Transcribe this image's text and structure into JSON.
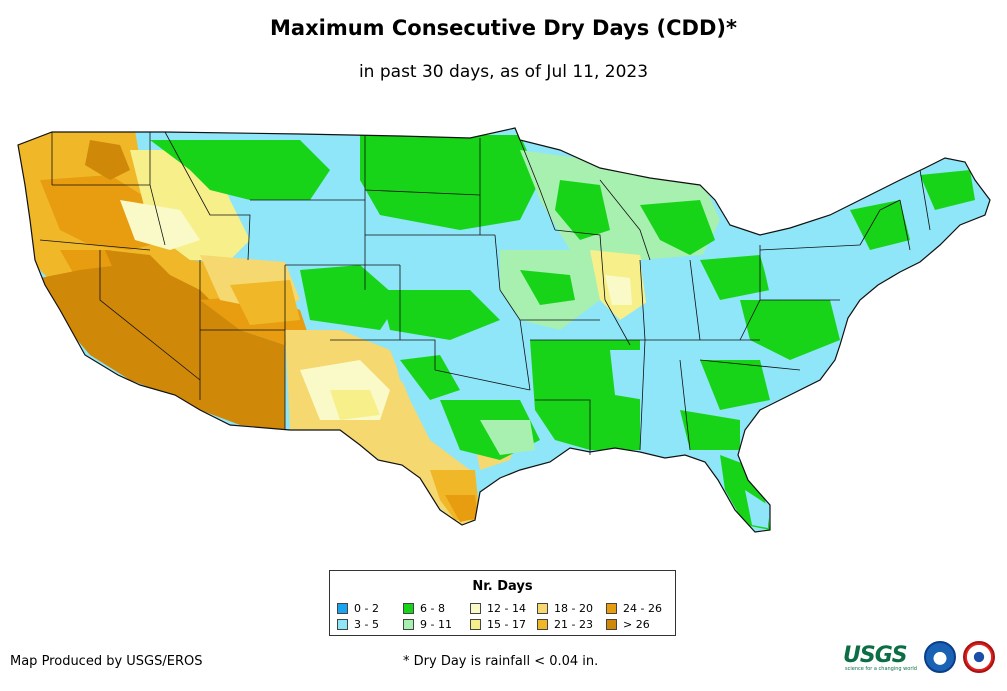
{
  "title": "Maximum Consecutive Dry Days (CDD)*",
  "subtitle": "in past 30 days, as of Jul 11, 2023",
  "legend": {
    "title": "Nr. Days",
    "items": [
      {
        "label": "0 - 2",
        "color": "#1aa3f0"
      },
      {
        "label": "3 - 5",
        "color": "#8ee6f8"
      },
      {
        "label": "6 - 8",
        "color": "#18d418"
      },
      {
        "label": "9 - 11",
        "color": "#a8f0b0"
      },
      {
        "label": "12 - 14",
        "color": "#fafac8"
      },
      {
        "label": "15 - 17",
        "color": "#f7f08a"
      },
      {
        "label": "18 - 20",
        "color": "#f5d870"
      },
      {
        "label": "21 - 23",
        "color": "#f0b828"
      },
      {
        "label": "24 - 26",
        "color": "#e89c10"
      },
      {
        "label": "> 26",
        "color": "#d08808"
      }
    ]
  },
  "footer": {
    "producer": "Map Produced by USGS/EROS",
    "note": "* Dry Day is rainfall < 0.04 in."
  },
  "logos": {
    "usgs": "USGS",
    "usgs_tagline": "science for a changing world"
  }
}
